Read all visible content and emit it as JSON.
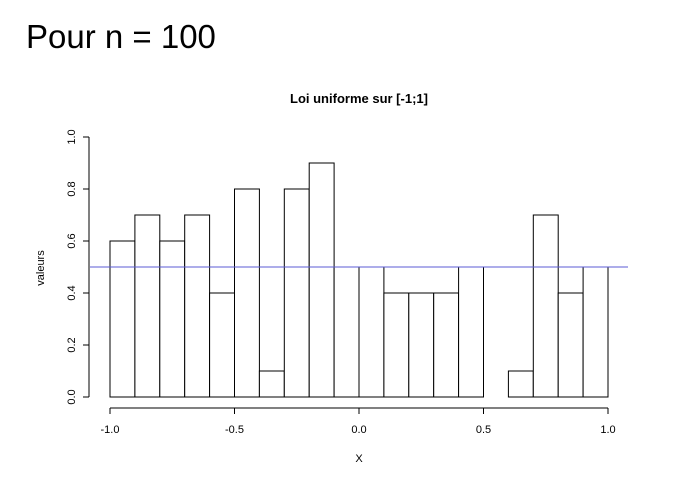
{
  "slide": {
    "title": "Pour n = 100"
  },
  "chart_data": {
    "type": "bar",
    "title": "Loi uniforme sur [-1;1]",
    "xlabel": "X",
    "ylabel": "valeurs",
    "xlim": [
      -1.0,
      1.0
    ],
    "ylim": [
      0.0,
      1.0
    ],
    "x_ticks": [
      "-1.0",
      "-0.5",
      "0.0",
      "0.5",
      "1.0"
    ],
    "y_ticks": [
      "0.0",
      "0.2",
      "0.4",
      "0.6",
      "0.8",
      "1.0"
    ],
    "bin_width": 0.1,
    "bins": [
      {
        "start": -1.0,
        "end": -0.9,
        "value": 0.6
      },
      {
        "start": -0.9,
        "end": -0.8,
        "value": 0.7
      },
      {
        "start": -0.8,
        "end": -0.7,
        "value": 0.6
      },
      {
        "start": -0.7,
        "end": -0.6,
        "value": 0.7
      },
      {
        "start": -0.6,
        "end": -0.5,
        "value": 0.4
      },
      {
        "start": -0.5,
        "end": -0.4,
        "value": 0.8
      },
      {
        "start": -0.4,
        "end": -0.3,
        "value": 0.1
      },
      {
        "start": -0.3,
        "end": -0.2,
        "value": 0.8
      },
      {
        "start": -0.2,
        "end": -0.1,
        "value": 0.9
      },
      {
        "start": -0.1,
        "end": 0.0,
        "value": 0.5
      },
      {
        "start": 0.0,
        "end": 0.1,
        "value": 0.5
      },
      {
        "start": 0.1,
        "end": 0.2,
        "value": 0.4
      },
      {
        "start": 0.2,
        "end": 0.3,
        "value": 0.4
      },
      {
        "start": 0.3,
        "end": 0.4,
        "value": 0.4
      },
      {
        "start": 0.4,
        "end": 0.5,
        "value": 0.5
      },
      {
        "start": 0.5,
        "end": 0.6,
        "value": 0.0
      },
      {
        "start": 0.6,
        "end": 0.7,
        "value": 0.1
      },
      {
        "start": 0.7,
        "end": 0.8,
        "value": 0.7
      },
      {
        "start": 0.8,
        "end": 0.9,
        "value": 0.4
      },
      {
        "start": 0.9,
        "end": 1.0,
        "value": 0.5
      }
    ],
    "reference_line": {
      "y": 0.5,
      "color": "#5b5bd6"
    },
    "bar_fill": "#ffffff",
    "bar_stroke": "#000000",
    "grid": false
  }
}
